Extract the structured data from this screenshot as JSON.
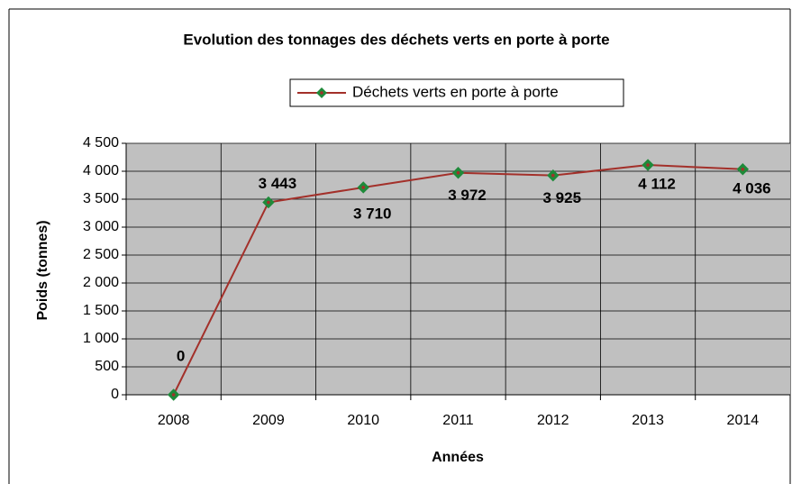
{
  "chart_data": {
    "type": "line",
    "title": "Evolution des tonnages des déchets verts en porte à porte",
    "x_label": "Années",
    "y_label": "Poids (tonnes)",
    "categories": [
      "2008",
      "2009",
      "2010",
      "2011",
      "2012",
      "2013",
      "2014"
    ],
    "series": [
      {
        "name": "Déchets verts en porte à porte",
        "color": "#a3302a",
        "marker_color": "#1f8a3a",
        "values": [
          0,
          3443,
          3710,
          3972,
          3925,
          4112,
          4036
        ],
        "value_labels": [
          "0",
          "3 443",
          "3 710",
          "3 972",
          "3 925",
          "4 112",
          "4 036"
        ]
      }
    ],
    "ylim": [
      0,
      4500
    ],
    "yticks": [
      {
        "value": 0,
        "label": "0"
      },
      {
        "value": 500,
        "label": "500"
      },
      {
        "value": 1000,
        "label": "1 000"
      },
      {
        "value": 1500,
        "label": "1 500"
      },
      {
        "value": 2000,
        "label": "2 000"
      },
      {
        "value": 2500,
        "label": "2 500"
      },
      {
        "value": 3000,
        "label": "3 000"
      },
      {
        "value": 3500,
        "label": "3 500"
      },
      {
        "value": 4000,
        "label": "4 000"
      },
      {
        "value": 4500,
        "label": "4 500"
      }
    ],
    "grid": true,
    "legend": "top"
  }
}
